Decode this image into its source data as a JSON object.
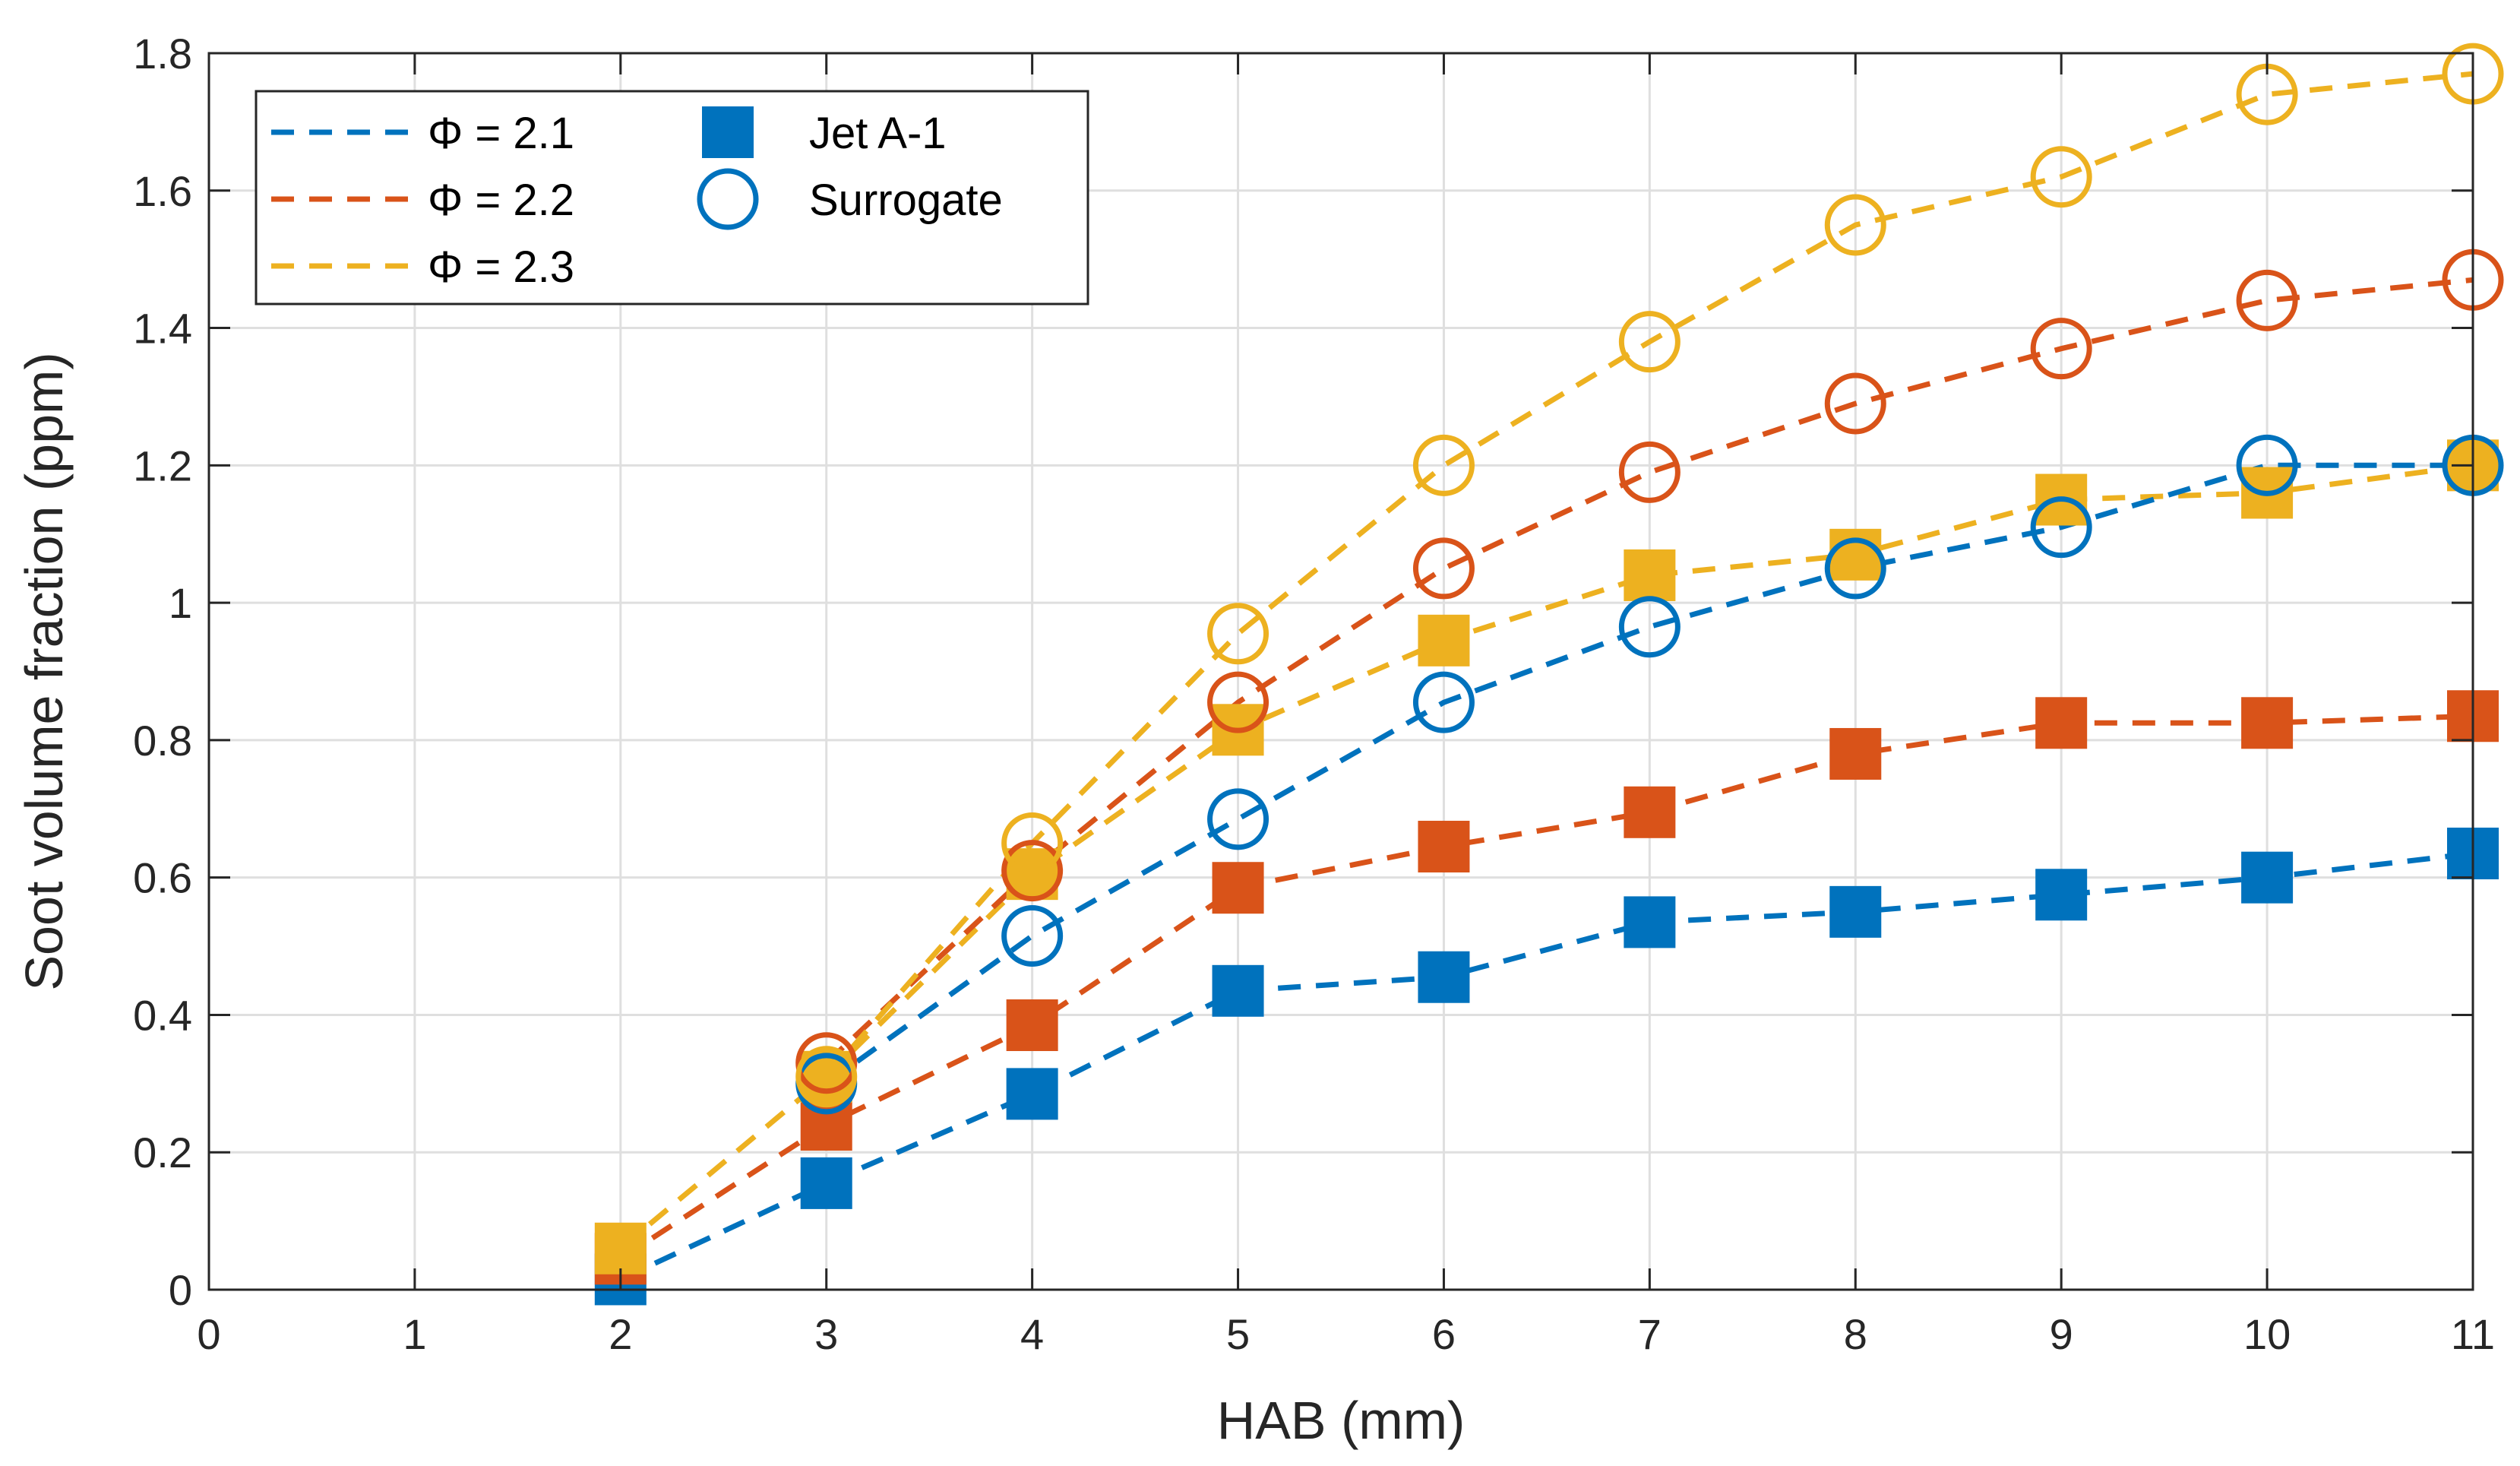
{
  "chart_data": {
    "type": "line",
    "title": "",
    "xlabel": "HAB (mm)",
    "ylabel": "Soot volume fraction (ppm)",
    "xlim": [
      0,
      11
    ],
    "ylim": [
      0,
      1.8
    ],
    "xticks": [
      0,
      1,
      2,
      3,
      4,
      5,
      6,
      7,
      8,
      9,
      10,
      11
    ],
    "xtick_labels": [
      "0",
      "1",
      "2",
      "3",
      "4",
      "5",
      "6",
      "7",
      "8",
      "9",
      "10",
      "11"
    ],
    "yticks": [
      0,
      0.2,
      0.4,
      0.6,
      0.8,
      1.0,
      1.2,
      1.4,
      1.6,
      1.8
    ],
    "ytick_labels": [
      "0",
      "0.2",
      "0.4",
      "0.6",
      "0.8",
      "1",
      "1.2",
      "1.4",
      "1.6",
      "1.8"
    ],
    "grid": true,
    "legend_position": "top-left",
    "x": [
      2,
      3,
      4,
      5,
      6,
      7,
      8,
      9,
      10,
      11
    ],
    "series": [
      {
        "name": "Φ = 2.1",
        "fuel": "Jet A-1",
        "marker": "square",
        "color": "#0072BD",
        "values": [
          0.015,
          0.155,
          0.285,
          0.435,
          0.455,
          0.535,
          0.55,
          0.575,
          0.6,
          0.635
        ]
      },
      {
        "name": "Φ = 2.2",
        "fuel": "Jet A-1",
        "marker": "square",
        "color": "#D95319",
        "values": [
          0.045,
          0.24,
          0.385,
          0.585,
          0.645,
          0.695,
          0.78,
          0.825,
          0.825,
          0.835
        ]
      },
      {
        "name": "Φ = 2.3",
        "fuel": "Jet A-1",
        "marker": "square",
        "color": "#EDB120",
        "values": [
          0.06,
          0.31,
          0.605,
          0.815,
          0.945,
          1.04,
          1.07,
          1.15,
          1.16,
          1.2
        ]
      },
      {
        "name": "Φ = 2.1",
        "fuel": "Surrogate",
        "marker": "circle",
        "color": "#0072BD",
        "values": [
          null,
          0.3,
          0.515,
          0.685,
          0.855,
          0.965,
          1.05,
          1.11,
          1.2,
          1.2
        ]
      },
      {
        "name": "Φ = 2.2",
        "fuel": "Surrogate",
        "marker": "circle",
        "color": "#D95319",
        "values": [
          null,
          0.33,
          0.61,
          0.855,
          1.05,
          1.19,
          1.29,
          1.37,
          1.44,
          1.47
        ]
      },
      {
        "name": "Φ = 2.3",
        "fuel": "Surrogate",
        "marker": "circle",
        "color": "#EDB120",
        "values": [
          null,
          0.31,
          0.65,
          0.955,
          1.2,
          1.38,
          1.55,
          1.62,
          1.74,
          1.77
        ]
      }
    ],
    "legend": {
      "lines": [
        {
          "label": "Φ = 2.1",
          "color": "#0072BD"
        },
        {
          "label": "Φ = 2.2",
          "color": "#D95319"
        },
        {
          "label": "Φ = 2.3",
          "color": "#EDB120"
        }
      ],
      "markers": [
        {
          "label": "Jet A-1",
          "marker": "square",
          "color": "#0072BD"
        },
        {
          "label": "Surrogate",
          "marker": "circle",
          "color": "#0072BD"
        }
      ]
    }
  }
}
